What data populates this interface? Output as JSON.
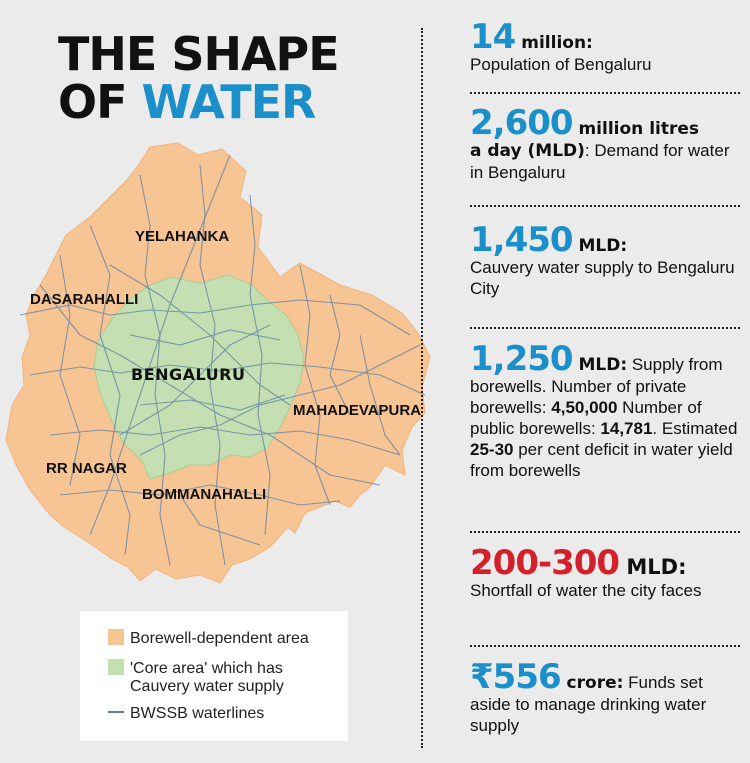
{
  "title": {
    "line1": "THE SHAPE",
    "line2_prefix": "OF ",
    "line2_accent": "WATER"
  },
  "colors": {
    "accent": "#1a8fc9",
    "red": "#d4202a",
    "borewell": "#f7c494",
    "core": "#c4dfb1",
    "waterline": "#5b7fa6"
  },
  "map": {
    "labels": {
      "yelahanka": "YELAHANKA",
      "dasarahalli": "DASARAHALLI",
      "bengaluru": "BENGALURU",
      "mahadevapura": "MAHADEVAPURA",
      "rr_nagar": "RR NAGAR",
      "bommanahalli": "BOMMANAHALLI"
    }
  },
  "legend": {
    "borewell": "Borewell-dependent area",
    "core_line1": "'Core area' which has",
    "core_line2": "Cauvery water supply",
    "waterlines": "BWSSB waterlines"
  },
  "stats": {
    "s1": {
      "big": "14",
      "unit": " million:",
      "text": "Population of Bengaluru"
    },
    "s2": {
      "big": "2,600",
      "unit": " million litres",
      "unit2": "a day (MLD)",
      "text": ": Demand for water in Bengaluru"
    },
    "s3": {
      "big": "1,450",
      "unit": " MLD:",
      "text": "Cauvery water supply to Bengaluru City"
    },
    "s4": {
      "big": "1,250",
      "unit": " MLD:",
      "t1": " Supply from borewells. Number of private borewells: ",
      "b1": "4,50,000",
      "t2": " Number of public borewells: ",
      "b2": "14,781",
      "t3": ". Estimated ",
      "b3": "25-30",
      "t4": " per cent deficit in water yield from borewells"
    },
    "s5": {
      "big": "200-300",
      "unit": " MLD:",
      "text": "Shortfall of water the city faces"
    },
    "s6": {
      "big": "₹556",
      "unit": " crore:",
      "text": " Funds set aside to manage drinking water supply"
    }
  }
}
